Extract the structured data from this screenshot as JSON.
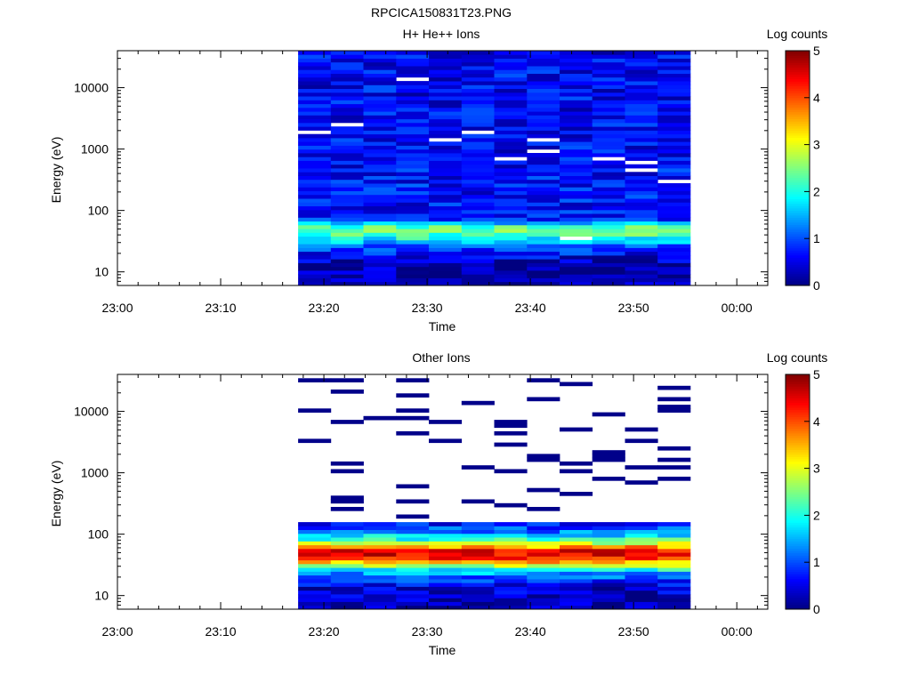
{
  "figure_title": "RPCICA150831T23.PNG",
  "colorbar_label": "Log counts",
  "colorbar_ticks": [
    "0",
    "1",
    "2",
    "3",
    "4",
    "5"
  ],
  "x_tick_labels": [
    "23:00",
    "23:10",
    "23:20",
    "23:30",
    "23:40",
    "23:50",
    "00:00"
  ],
  "chart_data": [
    {
      "type": "heatmap",
      "title": "H+ He++ Ions",
      "xlabel": "Time",
      "ylabel": "Energy (eV)",
      "x_range": [
        "23:00",
        "00:03"
      ],
      "y_range": [
        6,
        40000
      ],
      "y_scale": "log",
      "y_tick_labels": [
        "10",
        "100",
        "1000",
        "10000"
      ],
      "color_range": [
        0,
        5
      ],
      "colormap": "jet",
      "data_time_span": [
        "23:17.5",
        "23:55.5"
      ],
      "time_bins": 12,
      "description_levels": {
        "above_1000_eV": "0.2-1.2",
        "100_to_1000_eV": "0.3-1.5",
        "40_to_60_eV": "2.0-2.8",
        "below_20_eV": "0.1-0.6"
      },
      "profile": [
        {
          "energy_eV": 40000,
          "log_counts": 0.6
        },
        {
          "energy_eV": 10000,
          "log_counts": 0.6
        },
        {
          "energy_eV": 1000,
          "log_counts": 0.6
        },
        {
          "energy_eV": 300,
          "log_counts": 0.7
        },
        {
          "energy_eV": 100,
          "log_counts": 0.7
        },
        {
          "energy_eV": 70,
          "log_counts": 0.9
        },
        {
          "energy_eV": 55,
          "log_counts": 2.2
        },
        {
          "energy_eV": 45,
          "log_counts": 2.5
        },
        {
          "energy_eV": 35,
          "log_counts": 1.9
        },
        {
          "energy_eV": 25,
          "log_counts": 1.0
        },
        {
          "energy_eV": 15,
          "log_counts": 0.3
        },
        {
          "energy_eV": 8,
          "log_counts": 0.2
        }
      ],
      "colorbar_label": "Log counts"
    },
    {
      "type": "heatmap",
      "title": "Other Ions",
      "xlabel": "Time",
      "ylabel": "Energy (eV)",
      "x_range": [
        "23:00",
        "00:03"
      ],
      "y_range": [
        6,
        40000
      ],
      "y_scale": "log",
      "y_tick_labels": [
        "10",
        "100",
        "1000",
        "10000"
      ],
      "color_range": [
        0,
        5
      ],
      "colormap": "jet",
      "data_time_span": [
        "23:17.5",
        "23:55.5"
      ],
      "time_bins": 12,
      "profile": [
        {
          "energy_eV": 40000,
          "log_counts": 0.0
        },
        {
          "energy_eV": 500,
          "log_counts": 0.1
        },
        {
          "energy_eV": 200,
          "log_counts": 0.3
        },
        {
          "energy_eV": 120,
          "log_counts": 1.0
        },
        {
          "energy_eV": 80,
          "log_counts": 2.2
        },
        {
          "energy_eV": 55,
          "log_counts": 4.3
        },
        {
          "energy_eV": 45,
          "log_counts": 4.5
        },
        {
          "energy_eV": 35,
          "log_counts": 3.5
        },
        {
          "energy_eV": 25,
          "log_counts": 1.6
        },
        {
          "energy_eV": 15,
          "log_counts": 0.5
        },
        {
          "energy_eV": 8,
          "log_counts": 0.2
        }
      ],
      "colorbar_label": "Log counts"
    }
  ]
}
